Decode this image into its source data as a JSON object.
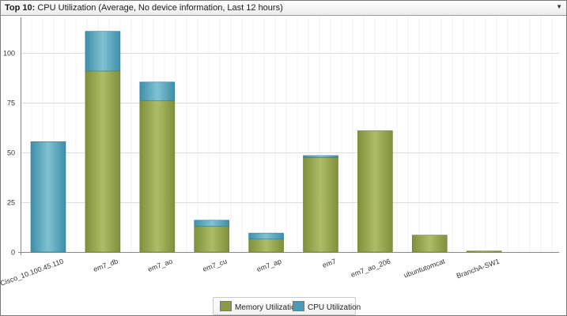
{
  "header": {
    "title_bold": "Top 10:",
    "title_rest": "CPU Utilization (Average, No device information, Last 12 hours)",
    "dropdown_icon": "chevron-down-icon"
  },
  "colors": {
    "memory": "#8b9b45",
    "memory_light": "#aab962",
    "cpu": "#4a9bb3",
    "cpu_light": "#7bbfd0",
    "grid": "#dcdcdc"
  },
  "chart_data": {
    "type": "bar",
    "stacked": true,
    "categories": [
      "Cisco_10.100.45.110",
      "em7_db",
      "em7_ao",
      "em7_cu",
      "em7_ap",
      "em7",
      "em7_ao_206",
      "ubuntutomcat",
      "BranchA-SW1"
    ],
    "series": [
      {
        "name": "Memory Utilization",
        "values": [
          0,
          91,
          76,
          13,
          6.5,
          47.5,
          61,
          8.5,
          0.5
        ]
      },
      {
        "name": "CPU Utilization",
        "values": [
          55.5,
          20,
          9.5,
          3,
          3,
          1,
          0,
          0,
          0
        ]
      }
    ],
    "yticks": [
      0,
      25,
      50,
      75,
      100
    ],
    "ylim": [
      0,
      118
    ],
    "xlabel": "",
    "ylabel": "",
    "grid": true,
    "legend_position": "bottom-center"
  }
}
